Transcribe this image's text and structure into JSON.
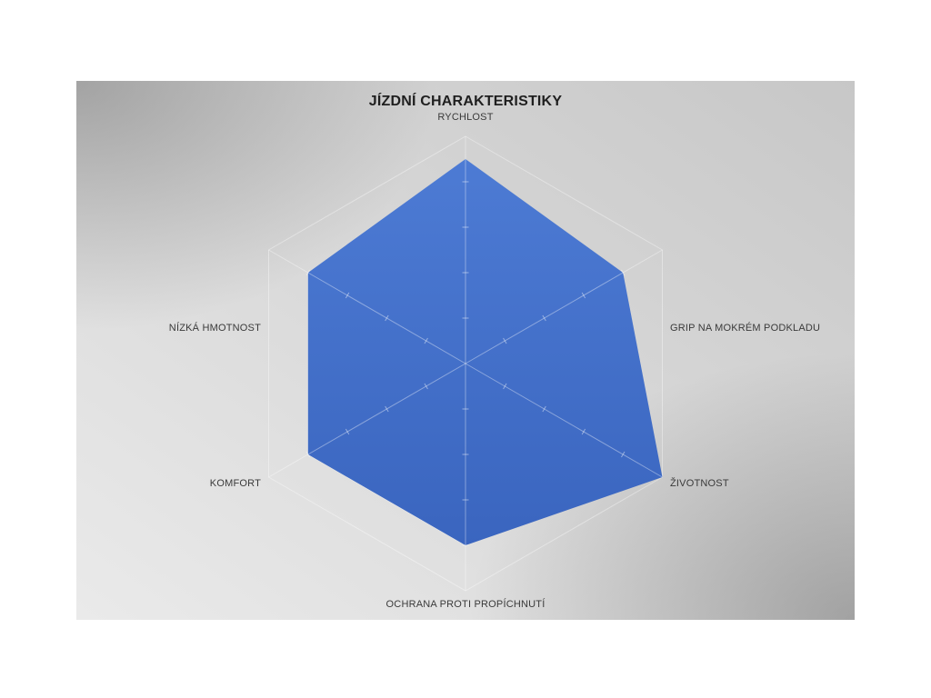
{
  "panel": {
    "background_base": "#c7c7c7",
    "background_light": "#eaeaea",
    "grid_color": "rgba(255,255,255,0.38)"
  },
  "chart_data": {
    "type": "radar",
    "title": "JÍZDNÍ CHARAKTERISTIKY",
    "categories": [
      "RYCHLOST",
      "GRIP NA MOKRÉM PODKLADU",
      "ŽIVOTNOST",
      "OCHRANA PROTI PROPÍCHNUTÍ",
      "KOMFORT",
      "NÍZKÁ HMOTNOST"
    ],
    "series": [
      {
        "name": "Jízdní charakteristiky",
        "values": [
          9,
          8,
          10,
          8,
          8,
          8
        ]
      }
    ],
    "rlim": [
      0,
      10
    ],
    "ring_interval": 2,
    "grid": true,
    "legend": false,
    "fill_color_top": "#4d7bd4",
    "fill_color_bottom": "#3a65bf",
    "grid_line_color": "rgba(255,255,255,0.38)",
    "tick_color": "rgba(255,255,255,0.45)"
  }
}
